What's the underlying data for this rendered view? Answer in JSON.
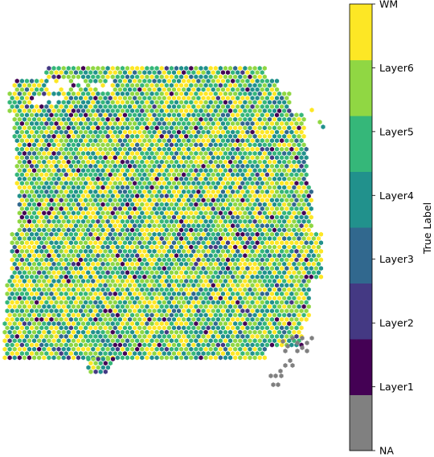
{
  "chart_data": {
    "type": "scatter",
    "title": "",
    "xlabel": "",
    "ylabel": "",
    "grid": false,
    "axes_visible": false,
    "marker": "hexagon",
    "grid_layout": "hexagonal",
    "colorbar": {
      "label": "True Label",
      "position": "right",
      "categories": [
        "NA",
        "Layer1",
        "Layer2",
        "Layer3",
        "Layer4",
        "Layer5",
        "Layer6",
        "WM"
      ],
      "tick_labels": [
        "NA",
        "Layer1",
        "Layer2",
        "Layer3",
        "Layer4",
        "Layer5",
        "Layer6",
        "WM"
      ],
      "colors": {
        "NA": "#808080",
        "Layer1": "#440154",
        "Layer2": "#443983",
        "Layer3": "#31688e",
        "Layer4": "#21918c",
        "Layer5": "#35b779",
        "Layer6": "#90d743",
        "WM": "#fde725"
      }
    },
    "series": [
      {
        "category": "WM",
        "approx_share": 0.25
      },
      {
        "category": "Layer6",
        "approx_share": 0.22
      },
      {
        "category": "Layer5",
        "approx_share": 0.21
      },
      {
        "category": "Layer4",
        "approx_share": 0.21
      },
      {
        "category": "Layer3",
        "approx_share": 0.05
      },
      {
        "category": "Layer2",
        "approx_share": 0.02
      },
      {
        "category": "Layer1",
        "approx_share": 0.03
      },
      {
        "category": "NA",
        "approx_share": 0.01
      }
    ]
  }
}
